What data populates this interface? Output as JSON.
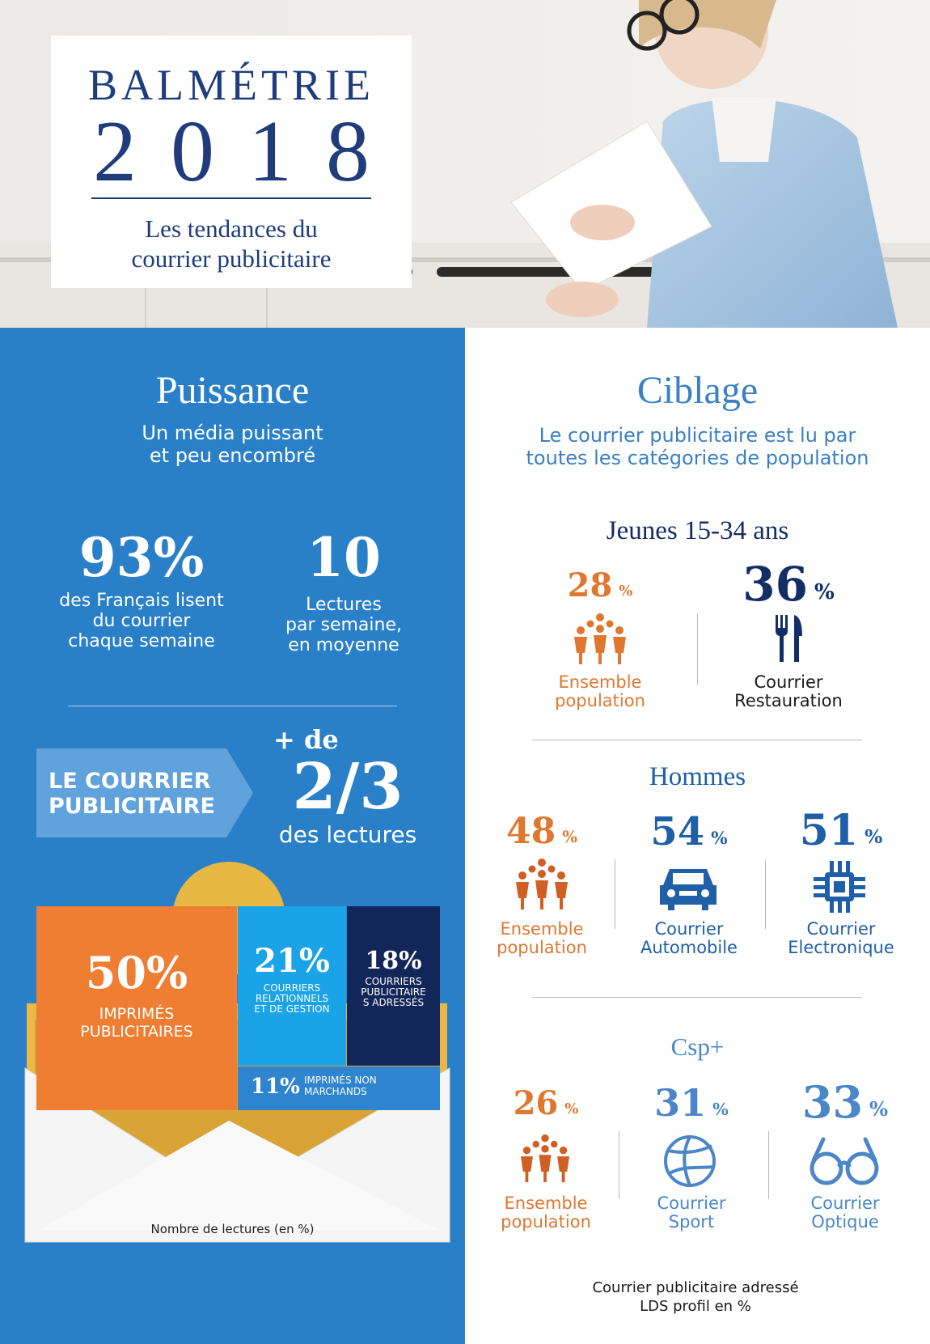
{
  "header": {
    "brand": "BALMÉTRIE",
    "year": "2018",
    "subtitle_line1": "Les tendances du",
    "subtitle_line2": "courrier publicitaire"
  },
  "puissance": {
    "title": "Puissance",
    "sub_line1": "Un média puissant",
    "sub_line2": "et peu encombré",
    "stat1": {
      "value": "93%",
      "label_line1": "des Français lisent",
      "label_line2": "du courrier",
      "label_line3": "chaque semaine"
    },
    "stat2": {
      "value": "10",
      "label_line1": "Lectures",
      "label_line2": "par semaine,",
      "label_line3": "en moyenne"
    },
    "arrow_line1": "LE COURRIER",
    "arrow_line2": "PUBLICITAIRE",
    "plus_de": "+ de",
    "fraction": "2/3",
    "des_lectures": "des lectures"
  },
  "envelope_chart": {
    "note": "Nombre de lectures (en %)",
    "tiles": [
      {
        "value": "50%",
        "label_line1": "IMPRIMÉS",
        "label_line2": "PUBLICITAIRES",
        "color": "#ef7e33"
      },
      {
        "value": "21%",
        "label_line1": "COURRIERS",
        "label_line2": "RELATIONNELS",
        "label_line3": "ET DE GESTION",
        "color": "#1ba3e7"
      },
      {
        "value": "18%",
        "label_line1": "COURRIERS",
        "label_line2": "PUBLICITAIRE",
        "label_line3": "S ADRESSÉS",
        "color": "#12265a"
      },
      {
        "value": "11%",
        "label_line1": "IMPRIMÉS NON",
        "label_line2": "MARCHANDS",
        "color": "#2f84cf"
      }
    ]
  },
  "ciblage": {
    "title": "Ciblage",
    "sub_line1": "Le courrier publicitaire est lu par",
    "sub_line2": "toutes les catégories de population",
    "groups": [
      {
        "title": "Jeunes 15-34 ans",
        "items": [
          {
            "value": "28",
            "unit": "%",
            "icon": "population-icon",
            "label_line1": "Ensemble",
            "label_line2": "population"
          },
          {
            "value": "36",
            "unit": "%",
            "icon": "fork-knife-icon",
            "label_line1": "Courrier",
            "label_line2": "Restauration"
          }
        ]
      },
      {
        "title": "Hommes",
        "items": [
          {
            "value": "48",
            "unit": "%",
            "icon": "population-icon",
            "label_line1": "Ensemble",
            "label_line2": "population"
          },
          {
            "value": "54",
            "unit": "%",
            "icon": "car-icon",
            "label_line1": "Courrier",
            "label_line2": "Automobile"
          },
          {
            "value": "51",
            "unit": "%",
            "icon": "chip-icon",
            "label_line1": "Courrier",
            "label_line2": "Electronique"
          }
        ]
      },
      {
        "title": "Csp+",
        "items": [
          {
            "value": "26",
            "unit": "%",
            "icon": "population-icon",
            "label_line1": "Ensemble",
            "label_line2": "population"
          },
          {
            "value": "31",
            "unit": "%",
            "icon": "volleyball-icon",
            "label_line1": "Courrier",
            "label_line2": "Sport"
          },
          {
            "value": "33",
            "unit": "%",
            "icon": "glasses-icon",
            "label_line1": "Courrier",
            "label_line2": "Optique"
          }
        ]
      }
    ],
    "footer_line1": "Courrier publicitaire adressé",
    "footer_line2": "LDS profil en %"
  },
  "colors": {
    "panel_blue": "#2a80c8",
    "orange": "#e0772f",
    "navy": "#132e66",
    "light_blue": "#4a86c8"
  }
}
